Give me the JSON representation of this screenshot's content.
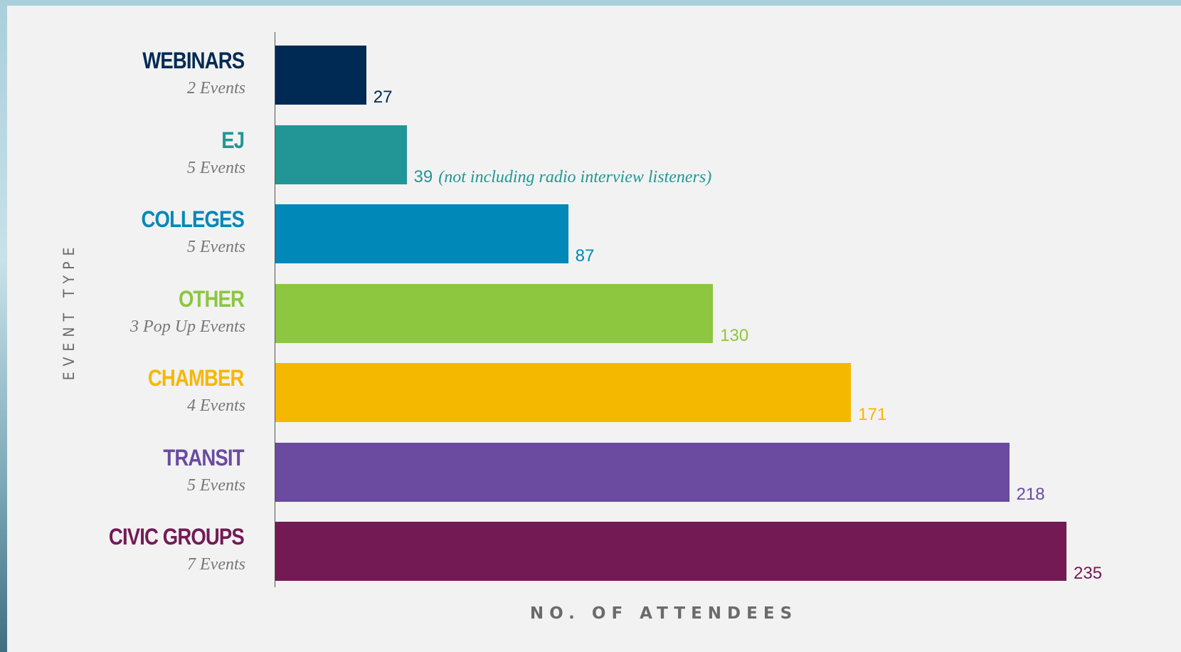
{
  "chart_data": {
    "type": "bar",
    "orientation": "horizontal",
    "xlabel": "NO. OF ATTENDEES",
    "ylabel": "EVENT TYPE",
    "xlim": [
      0,
      235
    ],
    "grid": false,
    "categories": [
      "WEBINARS",
      "EJ",
      "COLLEGES",
      "OTHER",
      "CHAMBER",
      "TRANSIT",
      "CIVIC GROUPS"
    ],
    "subtitles": [
      "2 Events",
      "5 Events",
      "5 Events",
      "3 Pop Up Events",
      "4 Events",
      "5 Events",
      "7 Events"
    ],
    "values": [
      27,
      39,
      87,
      130,
      171,
      218,
      235
    ],
    "value_labels": [
      "27",
      "39",
      "87",
      "130",
      "171",
      "218",
      "235"
    ],
    "annotations": [
      "",
      "(not including radio interview listeners)",
      "",
      "",
      "",
      "",
      ""
    ],
    "colors": [
      "#002a54",
      "#229696",
      "#0088b8",
      "#8dc63f",
      "#f5b800",
      "#6a4ba0",
      "#731a55"
    ]
  }
}
